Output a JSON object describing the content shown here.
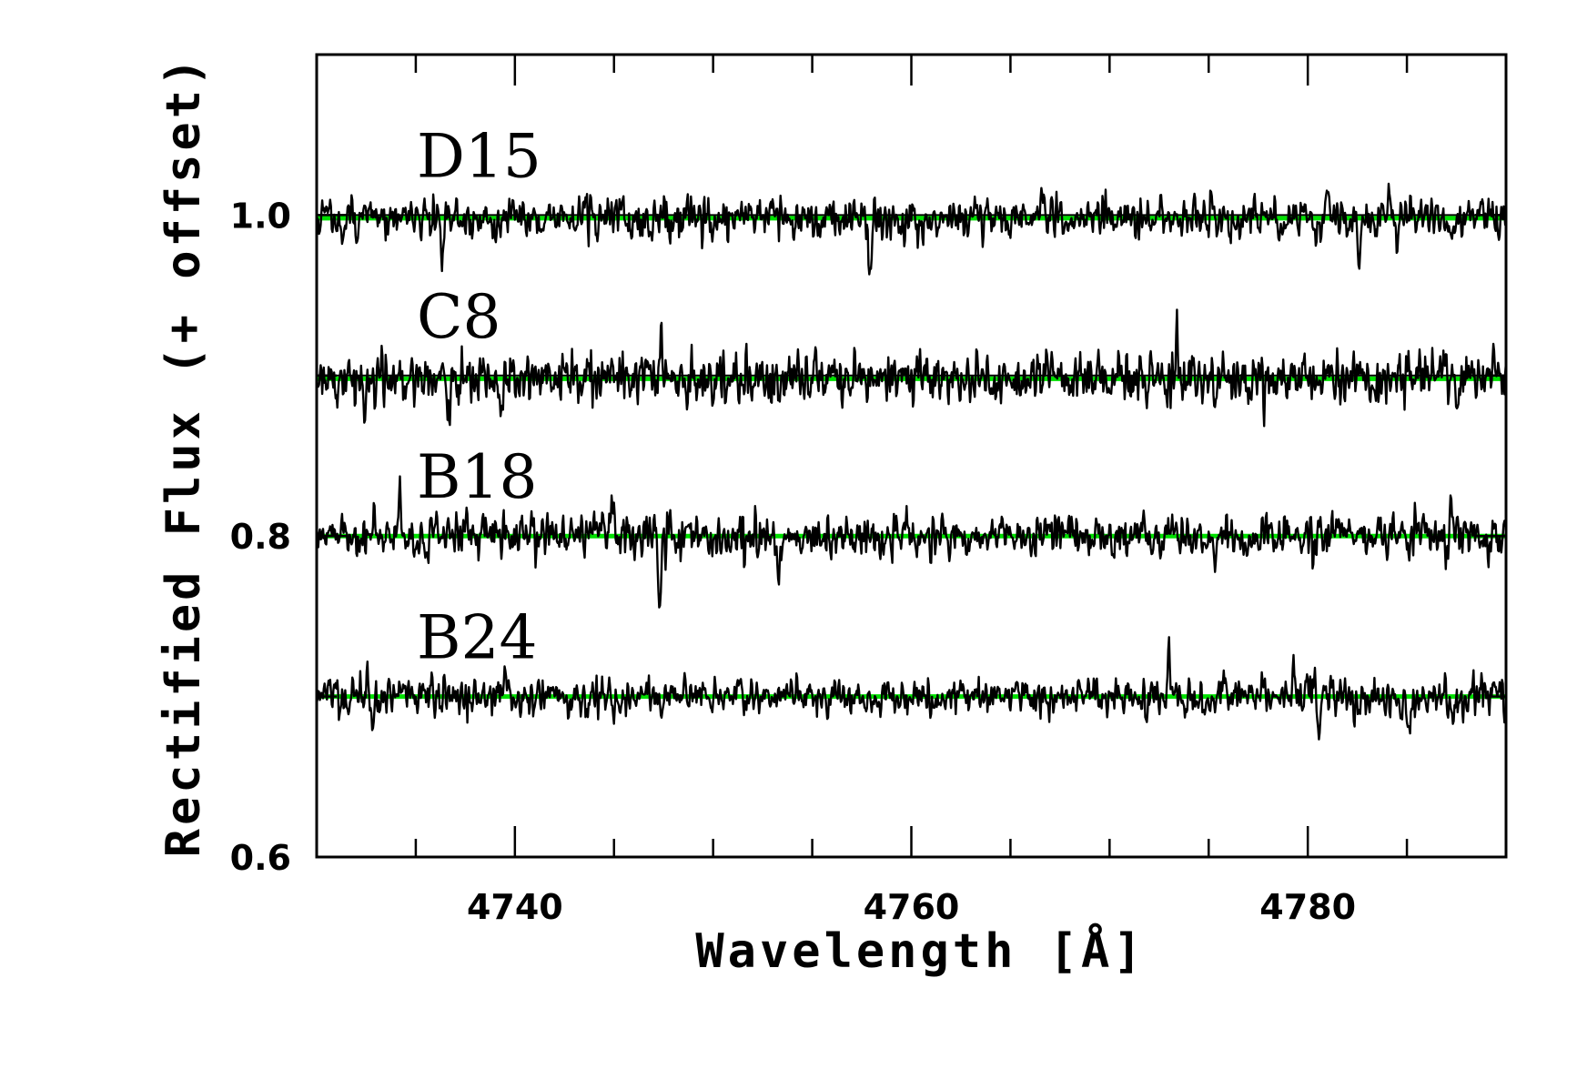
{
  "chart_data": {
    "type": "line",
    "title": "",
    "xlabel": "Wavelength [Å]",
    "ylabel": "Rectified Flux (+ offset)",
    "xlim": [
      4730,
      4790
    ],
    "ylim": [
      0.6,
      1.1
    ],
    "x_ticks": [
      4740,
      4760,
      4780
    ],
    "x_tick_labels": [
      "4740",
      "4760",
      "4780"
    ],
    "x_minor_step": 5,
    "y_ticks": [
      0.6,
      0.8,
      1.0
    ],
    "y_tick_labels": [
      "0.6",
      "0.8",
      "1.0"
    ],
    "y_minor_step": 0.1,
    "grid": false,
    "legend": "none",
    "model_color": "#00e000",
    "data_color": "#000000",
    "series": [
      {
        "name": "D15",
        "offset": 1.0,
        "model_continuum": 0.998,
        "noise_rms": 0.009,
        "absorption_features": [
          {
            "wavelength": 4736.3,
            "depth": 0.028
          },
          {
            "wavelength": 4757.9,
            "depth": 0.03
          },
          {
            "wavelength": 4780.4,
            "depth": 0.022
          },
          {
            "wavelength": 4782.6,
            "depth": 0.028
          }
        ],
        "emission_spikes": [
          {
            "wavelength": 4743.8,
            "height": 0.02
          },
          {
            "wavelength": 4784.1,
            "height": 0.022
          }
        ]
      },
      {
        "name": "C8",
        "offset": 0.9,
        "model_continuum": 0.898,
        "noise_rms": 0.011,
        "absorption_features": [
          {
            "wavelength": 4732.4,
            "depth": 0.022
          },
          {
            "wavelength": 4736.6,
            "depth": 0.025
          },
          {
            "wavelength": 4739.3,
            "depth": 0.03
          },
          {
            "wavelength": 4787.5,
            "depth": 0.028
          }
        ],
        "emission_spikes": [
          {
            "wavelength": 4747.4,
            "height": 0.032
          },
          {
            "wavelength": 4773.4,
            "height": 0.038
          }
        ]
      },
      {
        "name": "B18",
        "offset": 0.8,
        "model_continuum": 0.8,
        "noise_rms": 0.009,
        "absorption_features": [
          {
            "wavelength": 4747.3,
            "depth": 0.045
          },
          {
            "wavelength": 4753.3,
            "depth": 0.03
          },
          {
            "wavelength": 4775.3,
            "depth": 0.025
          }
        ],
        "emission_spikes": [
          {
            "wavelength": 4734.2,
            "height": 0.026
          },
          {
            "wavelength": 4744.9,
            "height": 0.024
          },
          {
            "wavelength": 4787.2,
            "height": 0.022
          }
        ]
      },
      {
        "name": "B24",
        "offset": 0.7,
        "model_continuum": 0.7,
        "noise_rms": 0.008,
        "absorption_features": [
          {
            "wavelength": 4732.8,
            "depth": 0.022
          },
          {
            "wavelength": 4780.6,
            "depth": 0.02
          },
          {
            "wavelength": 4785.1,
            "depth": 0.022
          }
        ],
        "emission_spikes": [
          {
            "wavelength": 4773.0,
            "height": 0.025
          },
          {
            "wavelength": 4779.3,
            "height": 0.03
          }
        ]
      }
    ]
  }
}
